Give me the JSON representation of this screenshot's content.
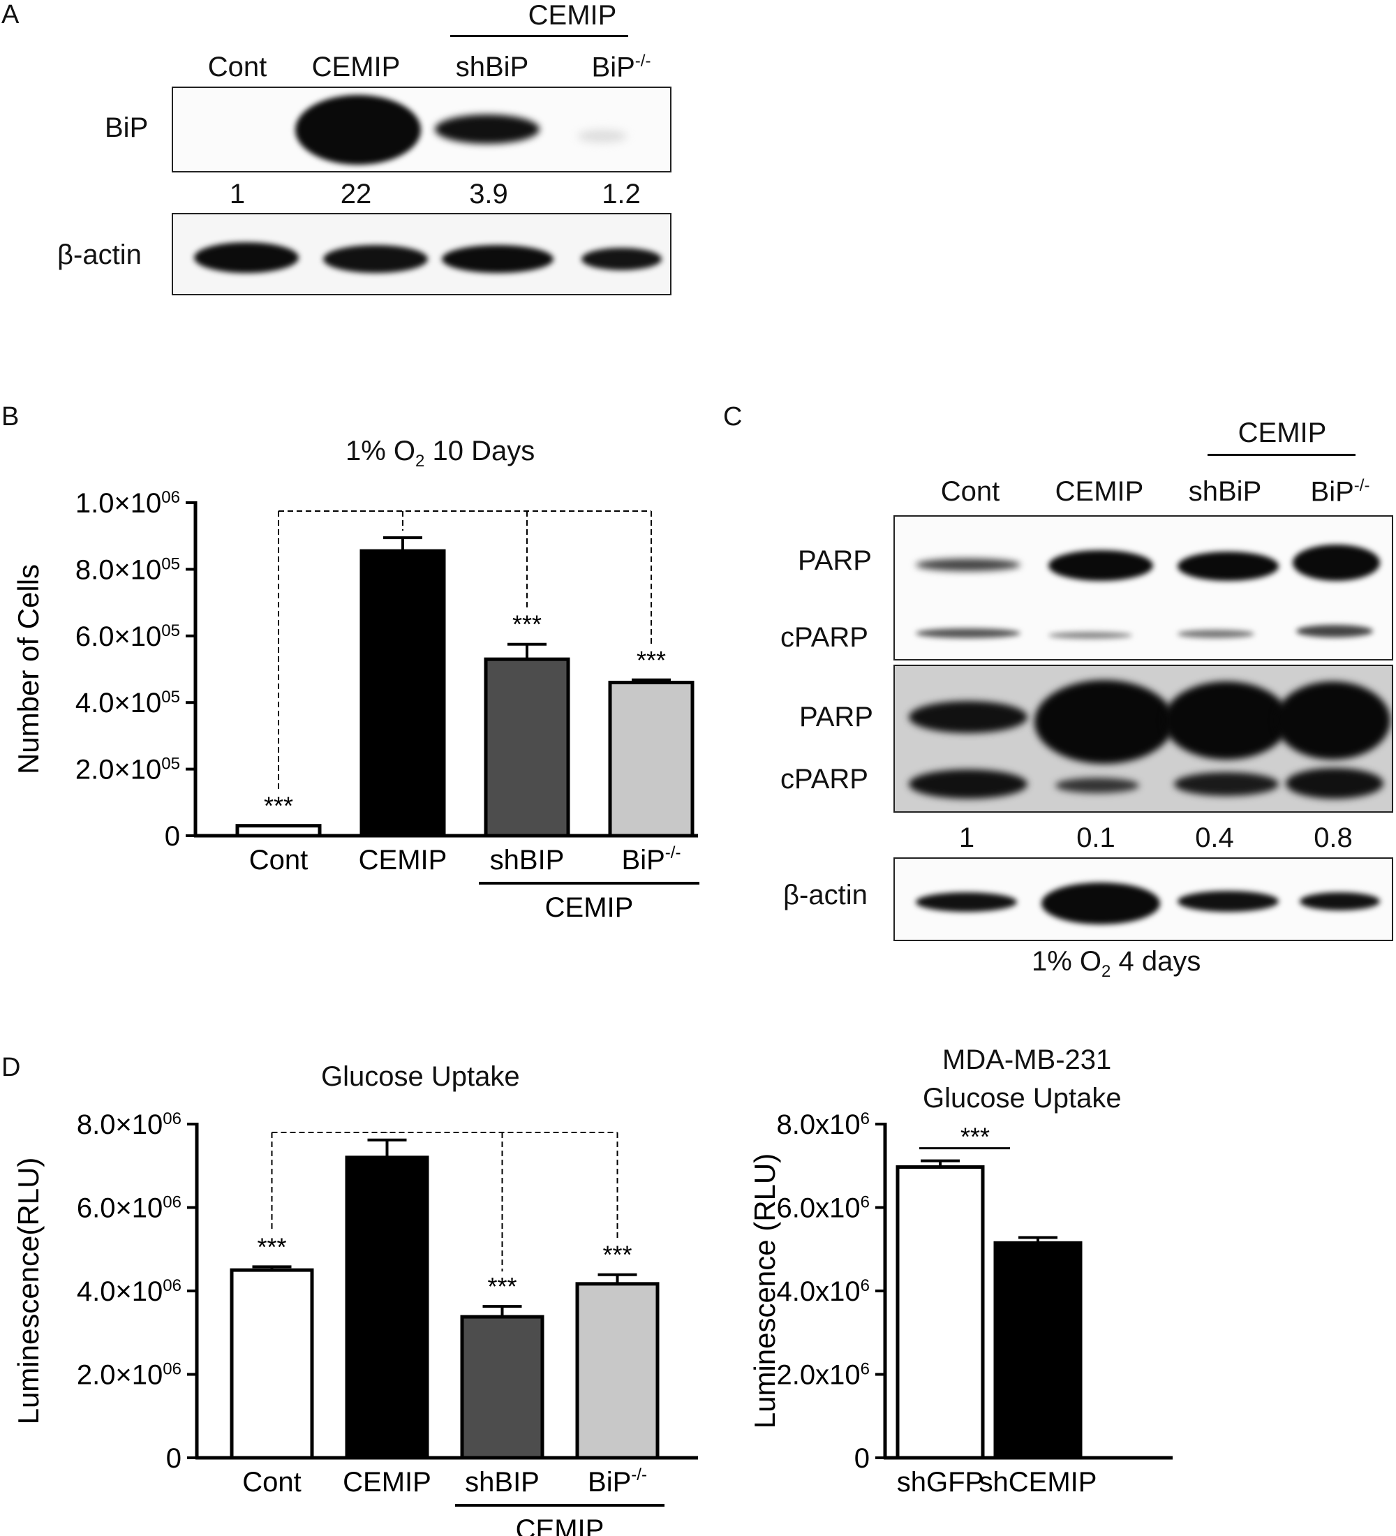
{
  "panels": {
    "A": {
      "letter": "A",
      "group_label": "CEMIP",
      "lanes": [
        "Cont",
        "CEMIP",
        "shBiP",
        "BiP"
      ],
      "lane_sup": "-/-",
      "row_labels": {
        "bip": "BiP",
        "actin": "β-actin"
      },
      "quant": [
        "1",
        "22",
        "3.9",
        "1.2"
      ]
    },
    "B": {
      "letter": "B",
      "title_pre": "1% O",
      "title_sub": "2",
      "title_post": " 10 Days",
      "ylabel": "Number of Cells",
      "group_label": "CEMIP",
      "sig": "***"
    },
    "C": {
      "letter": "C",
      "group_label": "CEMIP",
      "lanes": [
        "Cont",
        "CEMIP",
        "shBiP",
        "BiP"
      ],
      "lane_sup": "-/-",
      "row_labels": {
        "parp1": "PARP",
        "cparp1": "cPARP",
        "parp2": "PARP",
        "cparp2": "cPARP",
        "actin": "β-actin"
      },
      "quant": [
        "1",
        "0.1",
        "0.4",
        "0.8"
      ],
      "footer_pre": "1% O",
      "footer_sub": "2",
      "footer_post": " 4 days"
    },
    "D": {
      "letter": "D",
      "left_title": "Glucose Uptake",
      "left_ylabel": "Luminescence(RLU)",
      "right_title_1": "MDA-MB-231",
      "right_title_2": "Glucose Uptake",
      "right_ylabel": "Luminescence (RLU)",
      "group_label": "CEMIP",
      "sig": "***"
    }
  },
  "chart_data": [
    {
      "type": "bar",
      "title": "1% O2 10 Days",
      "ylabel": "Number of Cells",
      "categories": [
        "Cont",
        "CEMIP",
        "shBIP",
        "BiP"
      ],
      "category_sup": [
        "",
        "",
        "",
        "-/-"
      ],
      "values": [
        30000,
        855000,
        530000,
        460000
      ],
      "errors": [
        0,
        40000,
        45000,
        8000
      ],
      "ylim": [
        0,
        1000000
      ],
      "yticks": [
        0,
        200000,
        400000,
        600000,
        800000,
        1000000
      ],
      "ytick_labels": [
        {
          "base": "0",
          "exp": ""
        },
        {
          "base": "2.0×10",
          "exp": "05"
        },
        {
          "base": "4.0×10",
          "exp": "05"
        },
        {
          "base": "6.0×10",
          "exp": "05"
        },
        {
          "base": "8.0×10",
          "exp": "05"
        },
        {
          "base": "1.0×10",
          "exp": "06"
        }
      ],
      "colors": [
        "#ffffff",
        "#000000",
        "#4d4d4d",
        "#c8c8c8"
      ],
      "significance": [
        "***",
        "",
        "***",
        "***"
      ],
      "group_label": "CEMIP",
      "group_span": [
        2,
        3
      ]
    },
    {
      "type": "bar",
      "title": "Glucose Uptake",
      "ylabel": "Luminescence(RLU)",
      "categories": [
        "Cont",
        "CEMIP",
        "shBIP",
        "BiP"
      ],
      "category_sup": [
        "",
        "",
        "",
        "-/-"
      ],
      "values": [
        4500000,
        7200000,
        3380000,
        4170000
      ],
      "errors": [
        80000,
        420000,
        250000,
        220000
      ],
      "ylim": [
        0,
        8000000
      ],
      "yticks": [
        0,
        2000000,
        4000000,
        6000000,
        8000000
      ],
      "ytick_labels": [
        {
          "base": "0",
          "exp": ""
        },
        {
          "base": "2.0×10",
          "exp": "06"
        },
        {
          "base": "4.0×10",
          "exp": "06"
        },
        {
          "base": "6.0×10",
          "exp": "06"
        },
        {
          "base": "8.0×10",
          "exp": "06"
        }
      ],
      "colors": [
        "#ffffff",
        "#000000",
        "#4d4d4d",
        "#c8c8c8"
      ],
      "significance": [
        "***",
        "",
        "***",
        "***"
      ],
      "group_label": "CEMIP",
      "group_span": [
        2,
        3
      ]
    },
    {
      "type": "bar",
      "title": "MDA-MB-231 Glucose Uptake",
      "ylabel": "Luminescence (RLU)",
      "categories": [
        "shGFP",
        "shCEMIP"
      ],
      "values": [
        6970000,
        5150000
      ],
      "errors": [
        150000,
        130000
      ],
      "ylim": [
        0,
        8000000
      ],
      "yticks": [
        0,
        2000000,
        4000000,
        6000000,
        8000000
      ],
      "ytick_labels": [
        {
          "base": "0",
          "exp": ""
        },
        {
          "base": "2.0x10",
          "exp": "6"
        },
        {
          "base": "4.0x10",
          "exp": "6"
        },
        {
          "base": "6.0x10",
          "exp": "6"
        },
        {
          "base": "8.0x10",
          "exp": "6"
        }
      ],
      "colors": [
        "#ffffff",
        "#000000"
      ],
      "significance_pair": "***"
    }
  ]
}
